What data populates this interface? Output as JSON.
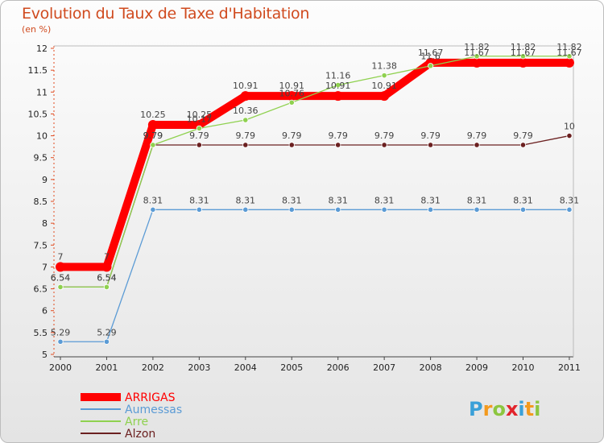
{
  "chart_data": {
    "type": "line",
    "title": "Evolution du Taux de Taxe d'Habitation",
    "unit_label": "(en %)",
    "xlabel": "",
    "ylabel": "",
    "ylim": [
      5,
      12
    ],
    "yticks": [
      "5",
      "5.5",
      "6",
      "6.5",
      "7",
      "7.5",
      "8",
      "8.5",
      "9",
      "9.5",
      "10",
      "10.5",
      "11",
      "11.5",
      "12"
    ],
    "categories": [
      "2000",
      "2001",
      "2002",
      "2003",
      "2004",
      "2005",
      "2006",
      "2007",
      "2008",
      "2009",
      "2010",
      "2011"
    ],
    "series": [
      {
        "name": "ARRIGAS",
        "color": "#ff0000",
        "values": [
          7,
          7,
          10.25,
          10.25,
          10.91,
          10.91,
          10.91,
          10.91,
          11.67,
          11.67,
          11.67,
          11.67
        ],
        "labels": [
          "7",
          "7",
          "10.25",
          "10.25",
          "10.91",
          "10.91",
          "10.91",
          "10.91",
          "11.67",
          "11.67",
          "11.67",
          "11.67"
        ]
      },
      {
        "name": "Aumessas",
        "color": "#5b9bd5",
        "values": [
          5.29,
          5.29,
          8.31,
          8.31,
          8.31,
          8.31,
          8.31,
          8.31,
          8.31,
          8.31,
          8.31,
          8.31
        ],
        "labels": [
          "5.29",
          "5.29",
          "8.31",
          "8.31",
          "8.31",
          "8.31",
          "8.31",
          "8.31",
          "8.31",
          "8.31",
          "8.31",
          "8.31"
        ]
      },
      {
        "name": "Arre",
        "color": "#8fd14f",
        "values": [
          6.54,
          6.54,
          9.79,
          10.17,
          10.36,
          10.76,
          11.16,
          11.38,
          11.6,
          11.82,
          11.82,
          11.82
        ],
        "labels": [
          "6.54",
          "6.54",
          "9.79",
          "10.17",
          "10.36",
          "10.76",
          "11.16",
          "11.38",
          "11.6",
          "11.82",
          "11.82",
          "11.82"
        ]
      },
      {
        "name": "Alzon",
        "color": "#6b2020",
        "values": [
          6.54,
          6.54,
          9.79,
          9.79,
          9.79,
          9.79,
          9.79,
          9.79,
          9.79,
          9.79,
          9.79,
          10
        ],
        "labels": [
          "6.54",
          "6.54",
          "9.79",
          "9.79",
          "9.79",
          "9.79",
          "9.79",
          "9.79",
          "9.79",
          "9.79",
          "9.79",
          "10"
        ]
      }
    ],
    "legend_position": "bottom-left"
  },
  "brand": {
    "letters": [
      "P",
      "r",
      "o",
      "x",
      "i",
      "t",
      "i"
    ],
    "colors": [
      "#3aa0d8",
      "#f39a1e",
      "#8cc63f",
      "#e2242c",
      "#3aa0d8",
      "#f39a1e",
      "#8cc63f"
    ]
  }
}
